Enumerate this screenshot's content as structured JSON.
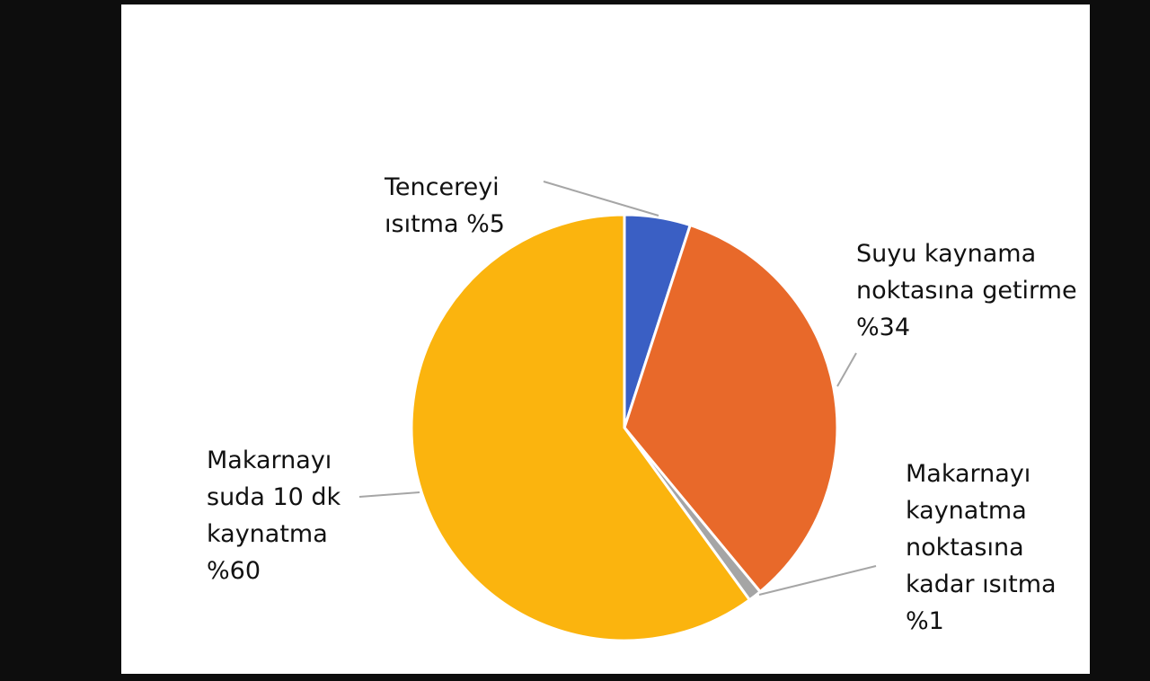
{
  "chart_data": {
    "type": "pie",
    "categories": [
      "Tencereyi ısıtma",
      "Suyu kaynama noktasına getirme",
      "Makarnayı kaynatma noktasına kadar ısıtma",
      "Makarnayı suda 10 dk kaynatma"
    ],
    "values": [
      5,
      34,
      1,
      60
    ],
    "value_labels": [
      "%5",
      "%34",
      "%1",
      "%60"
    ],
    "colors": [
      "#3a5fc4",
      "#e8692a",
      "#a5a5a5",
      "#fbb40e"
    ]
  }
}
